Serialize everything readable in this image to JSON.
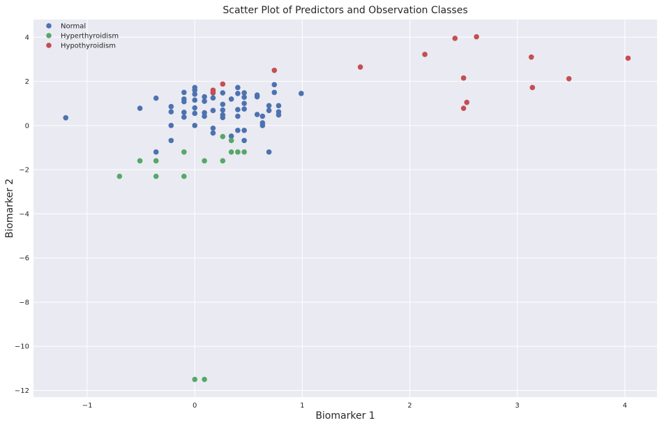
{
  "chart_data": {
    "type": "scatter",
    "title": "Scatter Plot of Predictors and Observation Classes",
    "xlabel": "Biomarker 1",
    "ylabel": "Biomarker 2",
    "xlim": [
      -1.5,
      4.3
    ],
    "ylim": [
      -12.3,
      4.8
    ],
    "xticks": [
      -1,
      0,
      1,
      2,
      3,
      4
    ],
    "xtick_labels": [
      "−1",
      "0",
      "1",
      "2",
      "3",
      "4"
    ],
    "yticks": [
      -12,
      -10,
      -8,
      -6,
      -4,
      -2,
      0,
      2,
      4
    ],
    "ytick_labels": [
      "−12",
      "−10",
      "−8",
      "−6",
      "−4",
      "−2",
      "0",
      "2",
      "4"
    ],
    "grid": true,
    "background": "#EAEAF2",
    "legend_position": "upper-left",
    "series": [
      {
        "name": "Normal",
        "color": "#4C72B0",
        "points": [
          [
            -1.2,
            0.35
          ],
          [
            -0.51,
            0.78
          ],
          [
            -0.36,
            1.24
          ],
          [
            -0.22,
            0.86
          ],
          [
            -0.22,
            0.62
          ],
          [
            -0.22,
            0.0
          ],
          [
            -0.22,
            -0.68
          ],
          [
            -0.36,
            -1.2
          ],
          [
            -0.1,
            1.5
          ],
          [
            -0.1,
            1.2
          ],
          [
            -0.1,
            1.08
          ],
          [
            -0.1,
            0.6
          ],
          [
            -0.1,
            0.38
          ],
          [
            0.0,
            1.72
          ],
          [
            0.0,
            1.6
          ],
          [
            0.0,
            1.42
          ],
          [
            0.0,
            1.15
          ],
          [
            0.0,
            0.8
          ],
          [
            0.0,
            0.55
          ],
          [
            0.0,
            0.0
          ],
          [
            0.09,
            1.3
          ],
          [
            0.09,
            1.1
          ],
          [
            0.09,
            0.58
          ],
          [
            0.09,
            0.42
          ],
          [
            0.17,
            1.48
          ],
          [
            0.17,
            1.25
          ],
          [
            0.17,
            0.68
          ],
          [
            0.17,
            -0.12
          ],
          [
            0.17,
            -0.34
          ],
          [
            0.26,
            1.48
          ],
          [
            0.26,
            0.96
          ],
          [
            0.26,
            0.7
          ],
          [
            0.26,
            0.48
          ],
          [
            0.26,
            0.36
          ],
          [
            0.34,
            1.2
          ],
          [
            0.34,
            -0.48
          ],
          [
            0.4,
            1.72
          ],
          [
            0.4,
            1.45
          ],
          [
            0.4,
            0.72
          ],
          [
            0.4,
            0.42
          ],
          [
            0.4,
            -0.22
          ],
          [
            0.46,
            1.48
          ],
          [
            0.46,
            1.28
          ],
          [
            0.46,
            1.0
          ],
          [
            0.46,
            0.75
          ],
          [
            0.46,
            -0.22
          ],
          [
            0.46,
            -0.68
          ],
          [
            0.58,
            1.38
          ],
          [
            0.58,
            1.3
          ],
          [
            0.58,
            0.5
          ],
          [
            0.63,
            0.42
          ],
          [
            0.63,
            0.12
          ],
          [
            0.63,
            0.0
          ],
          [
            0.69,
            0.9
          ],
          [
            0.69,
            0.68
          ],
          [
            0.69,
            -1.2
          ],
          [
            0.74,
            1.85
          ],
          [
            0.74,
            1.5
          ],
          [
            0.78,
            0.9
          ],
          [
            0.78,
            0.62
          ],
          [
            0.78,
            0.48
          ],
          [
            0.99,
            1.45
          ]
        ]
      },
      {
        "name": "Hyperthyroidism",
        "color": "#55A868",
        "points": [
          [
            -0.7,
            -2.3
          ],
          [
            -0.51,
            -1.6
          ],
          [
            -0.36,
            -1.6
          ],
          [
            -0.36,
            -2.3
          ],
          [
            -0.1,
            -1.2
          ],
          [
            -0.1,
            -2.3
          ],
          [
            0.09,
            -1.6
          ],
          [
            0.26,
            -0.5
          ],
          [
            0.26,
            -1.6
          ],
          [
            0.34,
            -0.68
          ],
          [
            0.34,
            -1.2
          ],
          [
            0.4,
            -1.2
          ],
          [
            0.46,
            -1.2
          ],
          [
            0.0,
            -11.5
          ],
          [
            0.09,
            -11.5
          ]
        ]
      },
      {
        "name": "Hypothyroidism",
        "color": "#C44E52",
        "points": [
          [
            0.17,
            1.6
          ],
          [
            0.17,
            1.5
          ],
          [
            0.26,
            1.88
          ],
          [
            0.74,
            2.5
          ],
          [
            1.54,
            2.65
          ],
          [
            2.14,
            3.22
          ],
          [
            2.42,
            3.95
          ],
          [
            2.5,
            2.15
          ],
          [
            2.5,
            0.78
          ],
          [
            2.53,
            1.05
          ],
          [
            2.62,
            4.02
          ],
          [
            3.13,
            3.1
          ],
          [
            3.14,
            1.72
          ],
          [
            3.48,
            2.12
          ],
          [
            4.03,
            3.05
          ]
        ]
      }
    ]
  }
}
